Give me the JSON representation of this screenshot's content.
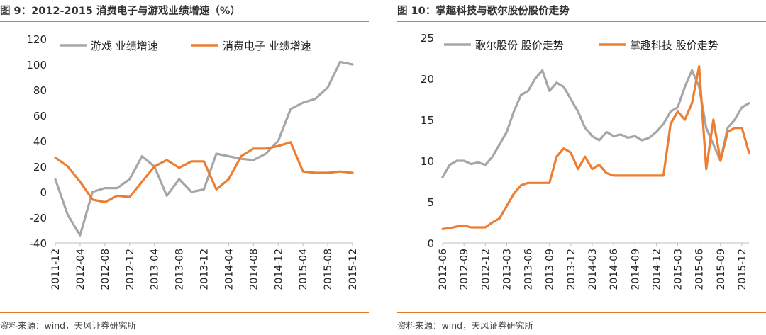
{
  "left": {
    "title": "图 9：2012-2015 消费电子与游戏业绩增速（%）",
    "source": "资料来源：wind，天风证券研究所",
    "chart_data": {
      "type": "line",
      "x": [
        "2011-12",
        "2012-02",
        "2012-04",
        "2012-06",
        "2012-08",
        "2012-10",
        "2012-12",
        "2013-02",
        "2013-04",
        "2013-06",
        "2013-08",
        "2013-10",
        "2013-12",
        "2014-02",
        "2014-04",
        "2014-06",
        "2014-08",
        "2014-10",
        "2014-12",
        "2015-02",
        "2015-04",
        "2015-06",
        "2015-08",
        "2015-10",
        "2015-12"
      ],
      "xticks": [
        "2011-12",
        "2012-04",
        "2012-08",
        "2012-12",
        "2013-04",
        "2013-08",
        "2013-12",
        "2014-04",
        "2014-08",
        "2014-12",
        "2015-04",
        "2015-08",
        "2015-12"
      ],
      "ylim": [
        -40,
        120
      ],
      "yticks": [
        -40,
        -20,
        0,
        20,
        40,
        60,
        80,
        100,
        120
      ],
      "legend_position": "top",
      "series": [
        {
          "name": "游戏 业绩增速",
          "color": "#a6a6a6",
          "values": [
            10,
            -18,
            -34,
            0,
            3,
            3,
            10,
            28,
            20,
            -3,
            10,
            0,
            2,
            30,
            28,
            26,
            25,
            30,
            40,
            65,
            70,
            73,
            82,
            102,
            100
          ]
        },
        {
          "name": "消费电子 业绩增速",
          "color": "#ed7d31",
          "values": [
            27,
            20,
            8,
            -6,
            -8,
            -3,
            -4,
            8,
            20,
            25,
            19,
            24,
            24,
            2,
            10,
            28,
            34,
            34,
            36,
            39,
            16,
            15,
            15,
            16,
            15
          ]
        }
      ]
    }
  },
  "right": {
    "title": "图 10：掌趣科技与歌尔股份股价走势",
    "source": "资料来源：wind，天风证券研究所",
    "chart_data": {
      "type": "line",
      "x": [
        "2012-06",
        "2012-07",
        "2012-08",
        "2012-09",
        "2012-10",
        "2012-11",
        "2012-12",
        "2013-01",
        "2013-02",
        "2013-03",
        "2013-04",
        "2013-05",
        "2013-06",
        "2013-07",
        "2013-08",
        "2013-09",
        "2013-10",
        "2013-11",
        "2013-12",
        "2014-01",
        "2014-02",
        "2014-03",
        "2014-04",
        "2014-05",
        "2014-06",
        "2014-07",
        "2014-08",
        "2014-09",
        "2014-10",
        "2014-11",
        "2014-12",
        "2015-01",
        "2015-02",
        "2015-03",
        "2015-04",
        "2015-05",
        "2015-06",
        "2015-07",
        "2015-08",
        "2015-09",
        "2015-10",
        "2015-11",
        "2015-12",
        "2016-01"
      ],
      "xticks": [
        "2012-06",
        "2012-09",
        "2012-12",
        "2013-03",
        "2013-06",
        "2013-09",
        "2013-12",
        "2014-03",
        "2014-06",
        "2014-09",
        "2014-12",
        "2015-03",
        "2015-06",
        "2015-09",
        "2015-12"
      ],
      "ylim": [
        0,
        25
      ],
      "yticks": [
        0,
        5,
        10,
        15,
        20,
        25
      ],
      "legend_position": "top",
      "series": [
        {
          "name": "歌尔股份 股价走势",
          "color": "#a6a6a6",
          "values": [
            8.0,
            9.5,
            10.0,
            10.0,
            9.6,
            9.8,
            9.5,
            10.5,
            12.0,
            13.5,
            16.0,
            18.0,
            18.5,
            20.0,
            21.0,
            18.5,
            19.5,
            19.0,
            17.5,
            16.0,
            14.0,
            13.0,
            12.5,
            13.5,
            13.0,
            13.2,
            12.8,
            13.0,
            12.5,
            12.8,
            13.5,
            14.5,
            16.0,
            16.5,
            19.0,
            21.0,
            19.0,
            14.0,
            12.0,
            10.0,
            14.0,
            15.0,
            16.5,
            17.0
          ]
        },
        {
          "name": "掌趣科技 股价走势",
          "color": "#ed7d31",
          "values": [
            1.7,
            1.8,
            2.0,
            2.1,
            1.9,
            1.9,
            1.9,
            2.5,
            3.0,
            4.5,
            6.0,
            7.0,
            7.3,
            7.3,
            7.3,
            7.3,
            10.5,
            11.5,
            11.0,
            9.0,
            10.5,
            9.0,
            9.5,
            8.5,
            8.2,
            8.2,
            8.2,
            8.2,
            8.2,
            8.2,
            8.2,
            8.2,
            14.5,
            16.0,
            15.0,
            17.0,
            21.5,
            9.0,
            15.0,
            10.0,
            13.5,
            14.0,
            14.0,
            11.0
          ]
        }
      ]
    }
  }
}
